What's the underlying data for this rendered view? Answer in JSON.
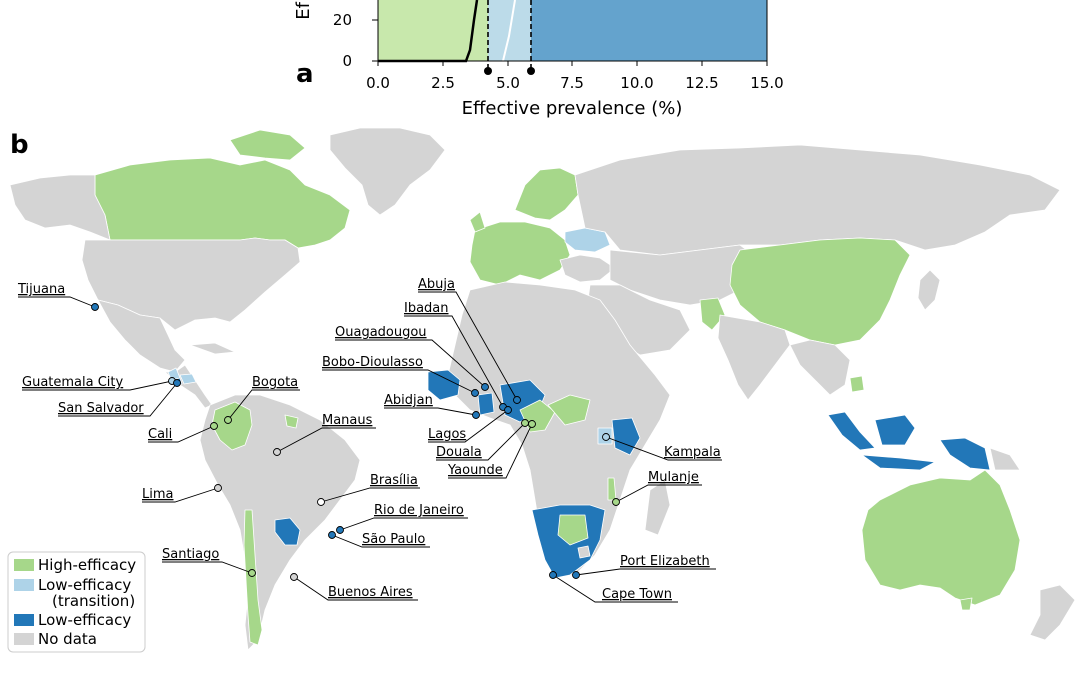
{
  "panel_a": {
    "label": "a",
    "xlabel": "Effective prevalence (%)",
    "ylabel_partial": "Ef",
    "xticks": [
      "0.0",
      "2.5",
      "5.0",
      "7.5",
      "10.0",
      "12.5",
      "15.0"
    ],
    "yticks": [
      "0",
      "20"
    ],
    "xlim": [
      0,
      15
    ],
    "thresholds": [
      4.3,
      5.9
    ],
    "regions": [
      {
        "from": 0,
        "to": 4.3,
        "class": "high"
      },
      {
        "from": 4.3,
        "to": 5.9,
        "class": "transition"
      },
      {
        "from": 5.9,
        "to": 15,
        "class": "low"
      }
    ]
  },
  "panel_b": {
    "label": "b",
    "cities": [
      {
        "name": "Tijuana"
      },
      {
        "name": "Guatemala City"
      },
      {
        "name": "San Salvador"
      },
      {
        "name": "Bogota"
      },
      {
        "name": "Cali"
      },
      {
        "name": "Manaus"
      },
      {
        "name": "Lima"
      },
      {
        "name": "Brasília"
      },
      {
        "name": "Rio de Janeiro"
      },
      {
        "name": "São Paulo"
      },
      {
        "name": "Santiago"
      },
      {
        "name": "Buenos Aires"
      },
      {
        "name": "Abuja"
      },
      {
        "name": "Ibadan"
      },
      {
        "name": "Ouagadougou"
      },
      {
        "name": "Bobo-Dioulasso"
      },
      {
        "name": "Abidjan"
      },
      {
        "name": "Lagos"
      },
      {
        "name": "Douala"
      },
      {
        "name": "Yaounde"
      },
      {
        "name": "Kampala"
      },
      {
        "name": "Mulanje"
      },
      {
        "name": "Port Elizabeth"
      },
      {
        "name": "Cape Town"
      }
    ]
  },
  "legend": {
    "items": [
      {
        "label": "High-efficacy",
        "color": "#a6d78a"
      },
      {
        "label": "Low-efficacy",
        "label2": "(transition)",
        "color": "#aed3e8"
      },
      {
        "label": "Low-efficacy",
        "color": "#2277b8"
      },
      {
        "label": "No data",
        "color": "#d4d4d4"
      }
    ]
  },
  "colors": {
    "high": "#a6d78a",
    "high_plot": "#c8e8ac",
    "transition": "#aed3e8",
    "transition_plot": "#bcdbe9",
    "low": "#2277b8",
    "low_plot": "#64a3cd",
    "nodata": "#d4d4d4"
  }
}
